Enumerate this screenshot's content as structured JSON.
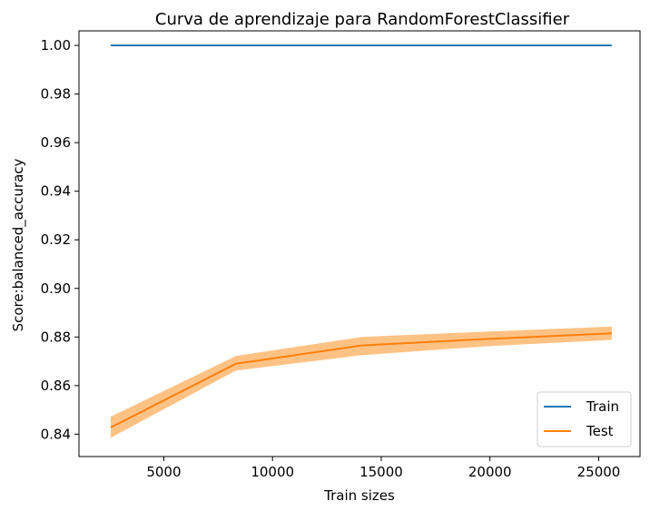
{
  "chart_data": {
    "type": "line",
    "title": "Curva de aprendizaje para RandomForestClassifier",
    "xlabel": "Train sizes",
    "ylabel": "Score:balanced_accuracy",
    "xlim": [
      1100,
      26900
    ],
    "ylim": [
      0.8308,
      1.006
    ],
    "xticks": [
      5000,
      10000,
      15000,
      20000,
      25000
    ],
    "yticks": [
      0.84,
      0.86,
      0.88,
      0.9,
      0.92,
      0.94,
      0.96,
      0.98,
      1.0
    ],
    "xtick_labels": [
      "5000",
      "10000",
      "15000",
      "20000",
      "25000"
    ],
    "ytick_labels": [
      "0.84",
      "0.86",
      "0.88",
      "0.90",
      "0.92",
      "0.94",
      "0.96",
      "0.98",
      "1.00"
    ],
    "grid": false,
    "legend_position": "lower-right",
    "series": [
      {
        "name": "Train",
        "color": "#1f77b4",
        "x": [
          2560,
          8320,
          14080,
          19840,
          25600
        ],
        "y": [
          1.0,
          1.0,
          1.0,
          1.0,
          1.0
        ],
        "band_lower": [
          1.0,
          1.0,
          1.0,
          1.0,
          1.0
        ],
        "band_upper": [
          1.0,
          1.0,
          1.0,
          1.0,
          1.0
        ]
      },
      {
        "name": "Test",
        "color": "#ff7f0e",
        "band_color": "#ffbb78",
        "x": [
          2560,
          8320,
          14080,
          19840,
          25600
        ],
        "y": [
          0.8428,
          0.869,
          0.8765,
          0.8792,
          0.8815
        ],
        "band_lower": [
          0.8385,
          0.8662,
          0.8725,
          0.8762,
          0.8788
        ],
        "band_upper": [
          0.8472,
          0.8722,
          0.88,
          0.8822,
          0.8843
        ]
      }
    ]
  }
}
